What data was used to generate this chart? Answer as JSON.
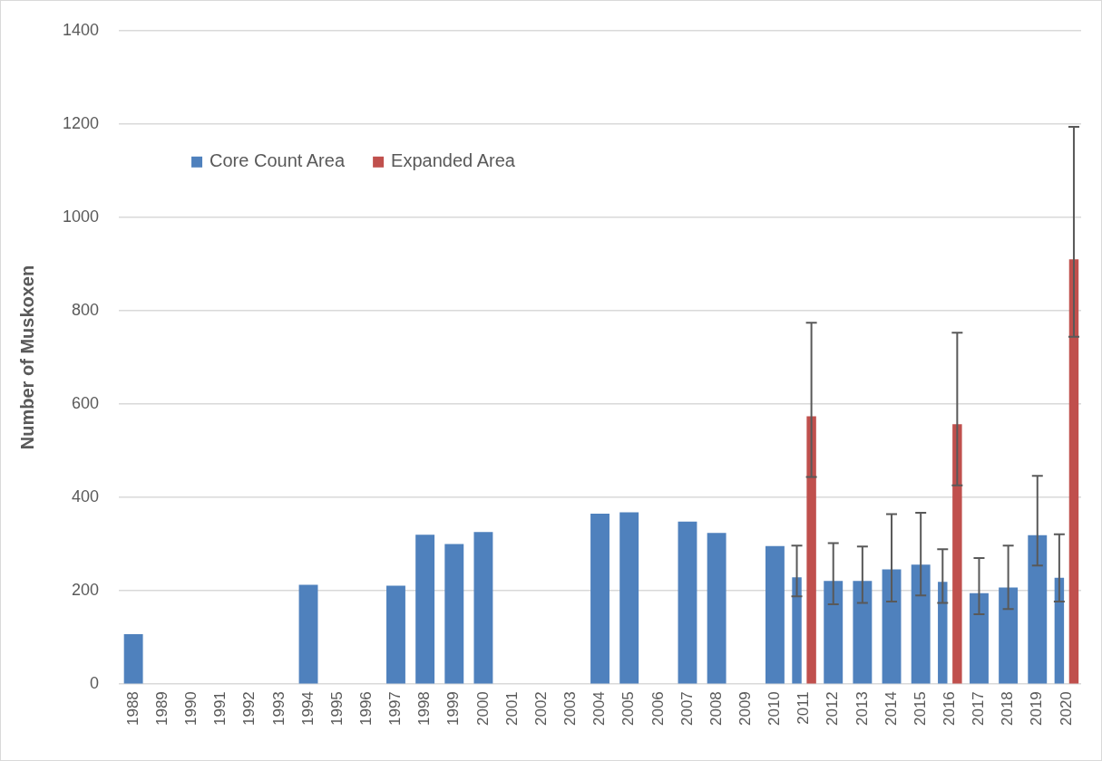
{
  "chart_data": {
    "type": "bar",
    "ylabel": "Number of Muskoxen",
    "categories": [
      "1988",
      "1989",
      "1990",
      "1991",
      "1992",
      "1993",
      "1994",
      "1995",
      "1996",
      "1997",
      "1998",
      "1999",
      "2000",
      "2001",
      "2002",
      "2003",
      "2004",
      "2005",
      "2006",
      "2007",
      "2008",
      "2009",
      "2010",
      "2011",
      "2012",
      "2013",
      "2014",
      "2015",
      "2016",
      "2017",
      "2018",
      "2019",
      "2020"
    ],
    "series": [
      {
        "name": "Core Count Area",
        "color": "#4f81bd",
        "values": [
          107,
          null,
          null,
          null,
          null,
          null,
          213,
          null,
          null,
          211,
          320,
          300,
          326,
          null,
          null,
          null,
          365,
          368,
          null,
          348,
          324,
          null,
          296,
          229,
          221,
          221,
          246,
          256,
          219,
          195,
          207,
          319,
          228
        ],
        "errors": [
          null,
          null,
          null,
          null,
          null,
          null,
          null,
          null,
          null,
          null,
          null,
          null,
          null,
          null,
          null,
          null,
          null,
          null,
          null,
          null,
          null,
          null,
          null,
          [
            188,
            297
          ],
          [
            171,
            302
          ],
          [
            174,
            295
          ],
          [
            177,
            364
          ],
          [
            190,
            367
          ],
          [
            174,
            289
          ],
          [
            150,
            270
          ],
          [
            161,
            297
          ],
          [
            254,
            446
          ],
          [
            177,
            321
          ]
        ]
      },
      {
        "name": "Expanded Area",
        "color": "#c0504d",
        "values": [
          null,
          null,
          null,
          null,
          null,
          null,
          null,
          null,
          null,
          null,
          null,
          null,
          null,
          null,
          null,
          null,
          null,
          null,
          null,
          null,
          null,
          null,
          null,
          574,
          null,
          null,
          null,
          null,
          557,
          null,
          null,
          null,
          910
        ],
        "errors": [
          null,
          null,
          null,
          null,
          null,
          null,
          null,
          null,
          null,
          null,
          null,
          null,
          null,
          null,
          null,
          null,
          null,
          null,
          null,
          null,
          null,
          null,
          null,
          [
            444,
            774
          ],
          null,
          null,
          null,
          null,
          [
            426,
            753
          ],
          null,
          null,
          null,
          [
            744,
            1194
          ]
        ]
      }
    ],
    "ylim": [
      0,
      1400
    ],
    "yticks": [
      0,
      200,
      400,
      600,
      800,
      1000,
      1200,
      1400
    ],
    "grid": "y",
    "legend": "top left"
  }
}
